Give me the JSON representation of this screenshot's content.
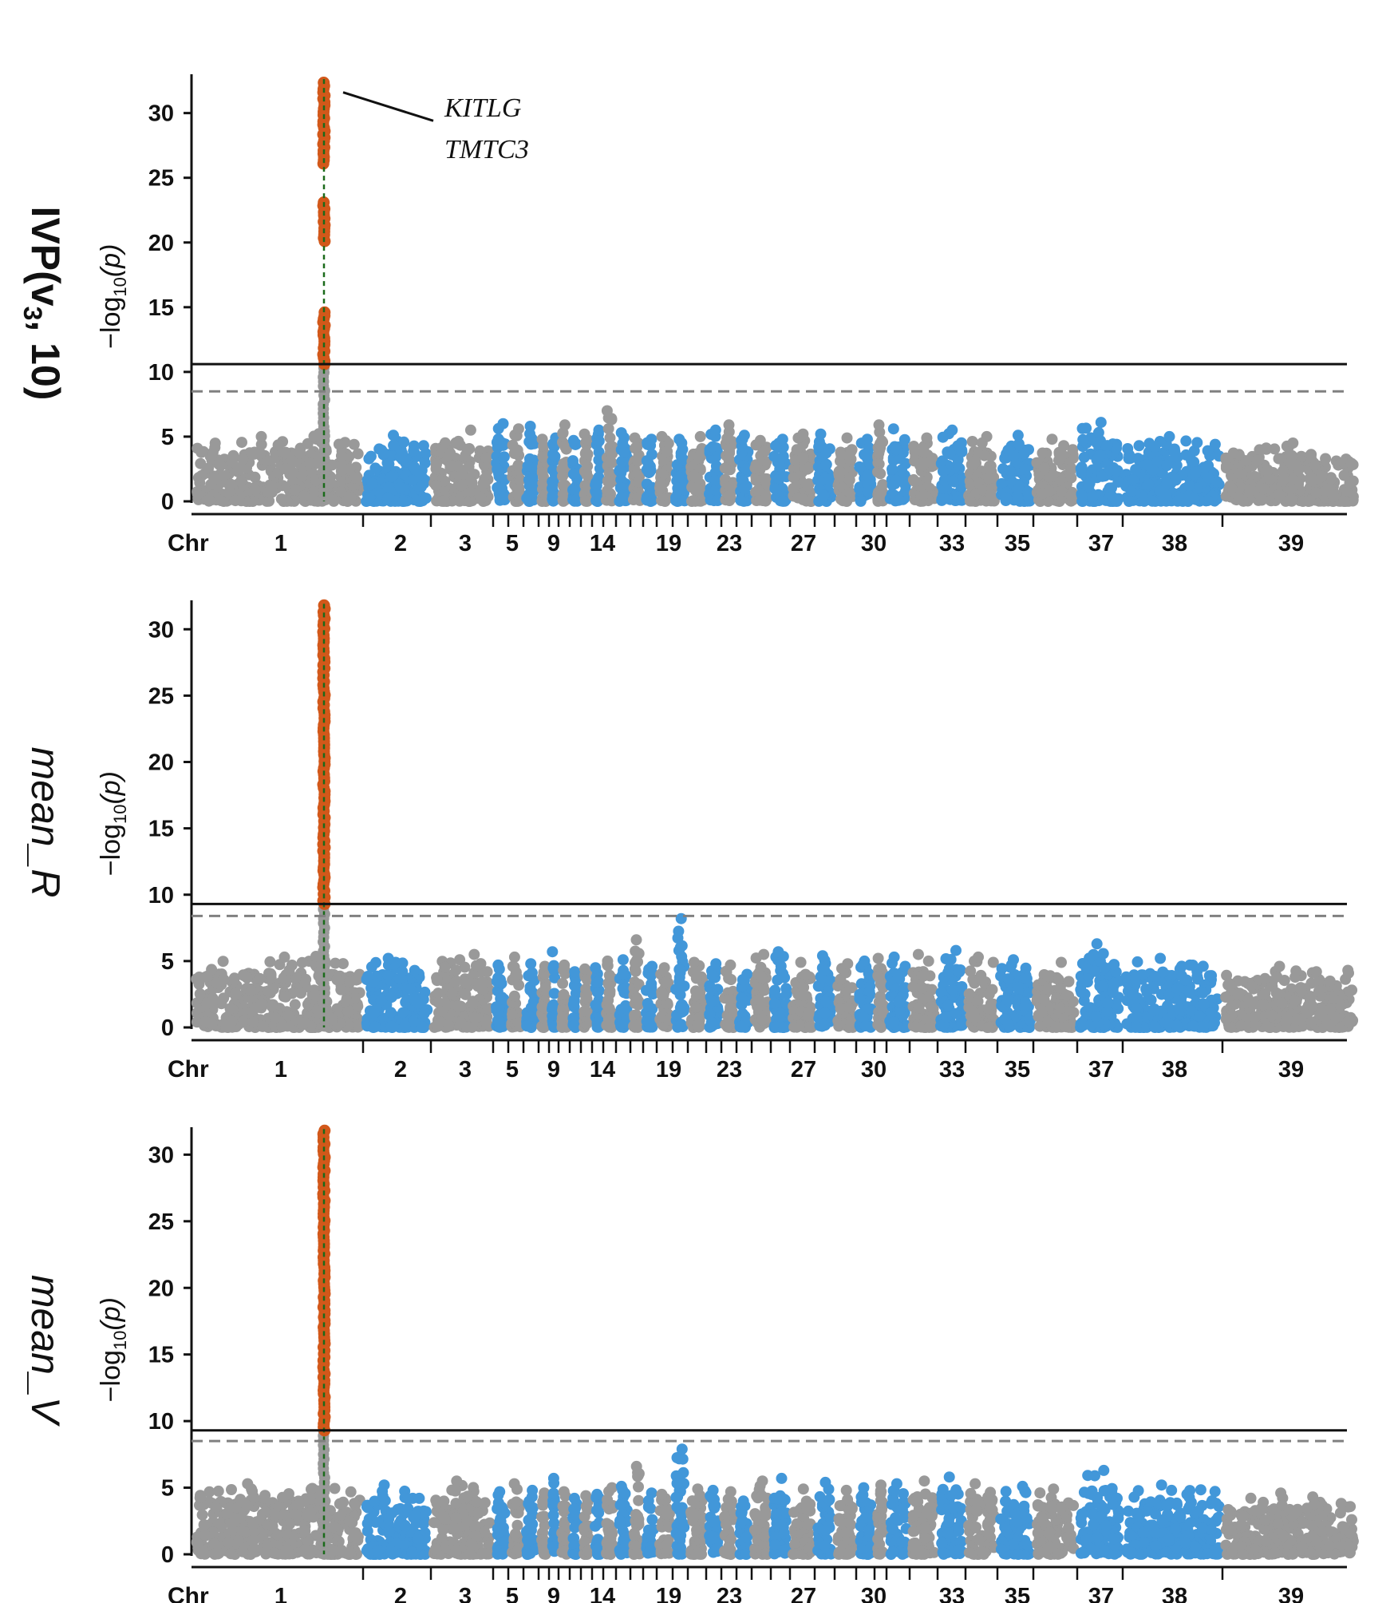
{
  "colors": {
    "gray": "#999999",
    "blue": "#4297d9",
    "highlight": "#d2581a",
    "lead_line": "#1a6a1a",
    "threshold_solid": "#111111",
    "threshold_dashed": "#808080"
  },
  "chart_data": [
    {
      "type": "scatter",
      "subtype": "manhattan",
      "row_title": {
        "main": "IVP",
        "open": "(",
        "var": "v",
        "sub": "3",
        "rest": ", 10)"
      },
      "ylabel": {
        "pre": "−log",
        "sub": "10",
        "post": "(p)"
      },
      "xlabel": "Chr",
      "ylim": [
        0,
        33
      ],
      "yticks": [
        "0",
        "5",
        "10",
        "15",
        "20",
        "25",
        "30"
      ],
      "xtick_labels": [
        "1",
        "2",
        "3",
        "5",
        "9",
        "14",
        "19",
        "23",
        "27",
        "30",
        "33",
        "35",
        "37",
        "38",
        "39"
      ],
      "thresholds": {
        "solid": 10.6,
        "dashed": 8.5
      },
      "peak": {
        "chromosome": "1",
        "position_fraction": 0.85,
        "max": 32.5,
        "gaps": [
          [
            23.2,
            26.0
          ],
          [
            14.8,
            20.0
          ]
        ]
      },
      "annotation": [
        "KITLG",
        "TMTC3"
      ],
      "chromosome_peaks": [
        5.0,
        5.1,
        5.5,
        6.0,
        5.6,
        5.8,
        4.8,
        4.9,
        5.9,
        4.7,
        5.2,
        5.5,
        7.0,
        5.3,
        4.9,
        4.8,
        5.0,
        4.8,
        5.0,
        5.5,
        5.9,
        5.1,
        4.7,
        4.8,
        5.2,
        5.2,
        4.9,
        4.8,
        5.9,
        5.6,
        4.9,
        5.5,
        5.0,
        5.1,
        4.8,
        6.1,
        5.0,
        4.5,
        4.5,
        5.3,
        6.8,
        5.3
      ]
    },
    {
      "type": "scatter",
      "subtype": "manhattan",
      "row_title": {
        "text": "mean_R"
      },
      "ylabel": {
        "pre": "−log",
        "sub": "10",
        "post": "(p)"
      },
      "xlabel": "Chr",
      "ylim": [
        0,
        32
      ],
      "yticks": [
        "0",
        "5",
        "10",
        "15",
        "20",
        "25",
        "30"
      ],
      "xtick_labels": [
        "1",
        "2",
        "3",
        "5",
        "9",
        "14",
        "19",
        "23",
        "27",
        "30",
        "33",
        "35",
        "37",
        "38",
        "39"
      ],
      "thresholds": {
        "solid": 9.3,
        "dashed": 8.4
      },
      "peak": {
        "chromosome": "1",
        "position_fraction": 0.85,
        "max": 31.8,
        "gaps": []
      },
      "annotation": [],
      "chromosome_peaks": [
        5.3,
        5.2,
        5.5,
        4.7,
        5.3,
        4.8,
        4.6,
        5.7,
        4.7,
        4.2,
        4.4,
        4.5,
        5.0,
        5.1,
        6.6,
        4.6,
        4.5,
        8.2,
        4.9,
        4.8,
        4.7,
        4.0,
        5.5,
        5.7,
        4.9,
        5.4,
        4.8,
        5.0,
        5.2,
        5.3,
        5.5,
        5.8,
        5.3,
        5.1,
        4.9,
        6.3,
        5.2,
        4.6,
        4.7,
        4.9,
        5.9,
        5.1
      ]
    },
    {
      "type": "scatter",
      "subtype": "manhattan",
      "row_title": {
        "text": "mean_V"
      },
      "ylabel": {
        "pre": "−log",
        "sub": "10",
        "post": "(p)"
      },
      "xlabel": "Chr",
      "ylim": [
        0,
        32
      ],
      "yticks": [
        "0",
        "5",
        "10",
        "15",
        "20",
        "25",
        "30"
      ],
      "xtick_labels": [
        "1",
        "2",
        "3",
        "5",
        "9",
        "14",
        "19",
        "23",
        "27",
        "30",
        "33",
        "35",
        "37",
        "38",
        "39"
      ],
      "thresholds": {
        "solid": 9.3,
        "dashed": 8.5
      },
      "peak": {
        "chromosome": "1",
        "position_fraction": 0.85,
        "max": 31.8,
        "gaps": []
      },
      "annotation": [],
      "chromosome_peaks": [
        5.3,
        5.2,
        5.5,
        4.7,
        5.3,
        4.8,
        4.6,
        5.7,
        4.7,
        4.2,
        4.4,
        4.5,
        5.0,
        5.1,
        6.6,
        4.6,
        4.5,
        7.9,
        4.9,
        4.8,
        4.7,
        4.0,
        5.5,
        5.7,
        4.9,
        5.4,
        4.8,
        5.0,
        5.2,
        5.3,
        5.5,
        5.8,
        5.3,
        5.1,
        4.9,
        6.3,
        5.2,
        4.6,
        4.7,
        4.9,
        5.9,
        5.1
      ]
    }
  ]
}
